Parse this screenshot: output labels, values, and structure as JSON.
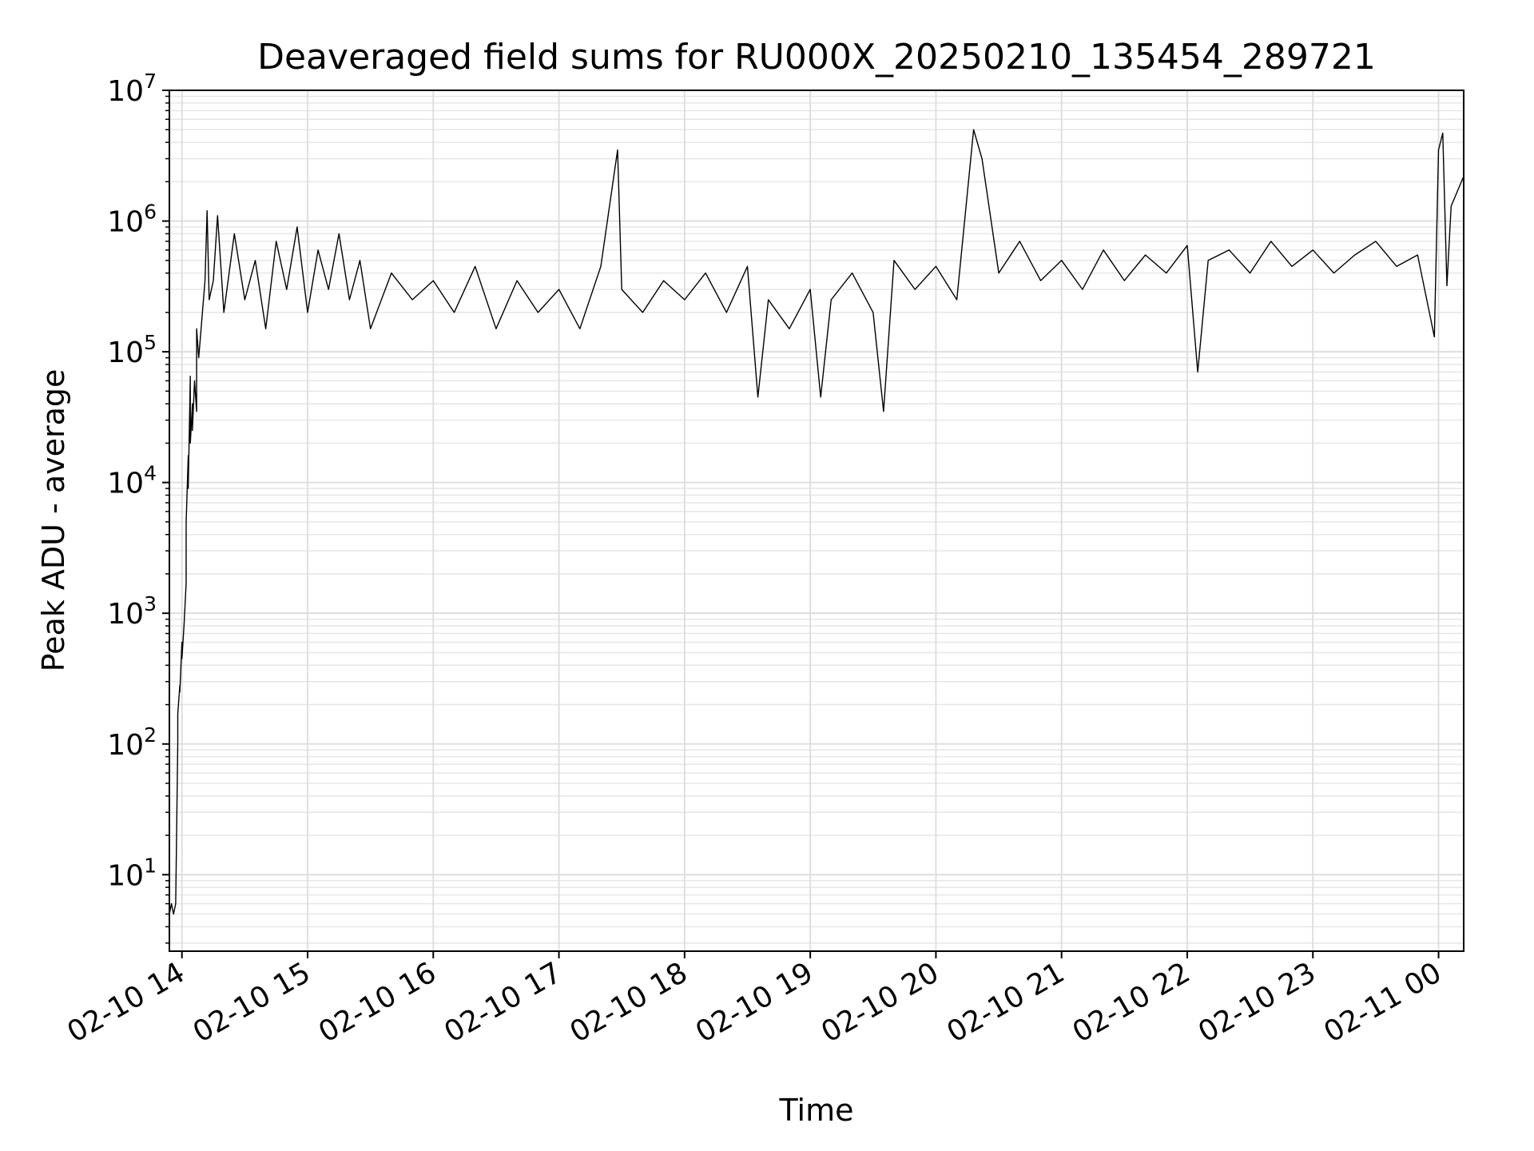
{
  "chart_data": {
    "type": "line",
    "title": "Deaveraged field sums for RU000X_20250210_135454_289721",
    "xlabel": "Time",
    "ylabel": "Peak ADU - average",
    "y_scale": "log",
    "ylim": [
      2.6,
      10000000
    ],
    "xlim": [
      "2025-02-10 13:54",
      "2025-02-11 00:12"
    ],
    "grid": true,
    "x_ticks": [
      {
        "value": "2025-02-10 14:00",
        "label": "02-10 14"
      },
      {
        "value": "2025-02-10 15:00",
        "label": "02-10 15"
      },
      {
        "value": "2025-02-10 16:00",
        "label": "02-10 16"
      },
      {
        "value": "2025-02-10 17:00",
        "label": "02-10 17"
      },
      {
        "value": "2025-02-10 18:00",
        "label": "02-10 18"
      },
      {
        "value": "2025-02-10 19:00",
        "label": "02-10 19"
      },
      {
        "value": "2025-02-10 20:00",
        "label": "02-10 20"
      },
      {
        "value": "2025-02-10 21:00",
        "label": "02-10 21"
      },
      {
        "value": "2025-02-10 22:00",
        "label": "02-10 22"
      },
      {
        "value": "2025-02-10 23:00",
        "label": "02-10 23"
      },
      {
        "value": "2025-02-11 00:00",
        "label": "02-11 00"
      }
    ],
    "y_ticks": [
      {
        "base": "10",
        "exp": "1",
        "value": 10
      },
      {
        "base": "10",
        "exp": "2",
        "value": 100
      },
      {
        "base": "10",
        "exp": "3",
        "value": 1000
      },
      {
        "base": "10",
        "exp": "4",
        "value": 10000
      },
      {
        "base": "10",
        "exp": "5",
        "value": 100000
      },
      {
        "base": "10",
        "exp": "6",
        "value": 1000000
      },
      {
        "base": "10",
        "exp": "7",
        "value": 10000000
      }
    ],
    "series": [
      {
        "color": "#000000",
        "points": [
          [
            "2025-02-10 13:54",
            5
          ],
          [
            "2025-02-10 13:55",
            6
          ],
          [
            "2025-02-10 13:56",
            5
          ],
          [
            "2025-02-10 13:57",
            6
          ],
          [
            "2025-02-10 13:58",
            100
          ],
          [
            "2025-02-10 13:58",
            170
          ],
          [
            "2025-02-10 13:59",
            280
          ],
          [
            "2025-02-10 13:59",
            250
          ],
          [
            "2025-02-10 14:00",
            600
          ],
          [
            "2025-02-10 14:00",
            450
          ],
          [
            "2025-02-10 14:01",
            800
          ],
          [
            "2025-02-10 14:02",
            1700
          ],
          [
            "2025-02-10 14:02",
            5000
          ],
          [
            "2025-02-10 14:03",
            16000
          ],
          [
            "2025-02-10 14:03",
            9000
          ],
          [
            "2025-02-10 14:04",
            65000
          ],
          [
            "2025-02-10 14:04",
            20000
          ],
          [
            "2025-02-10 14:05",
            40000
          ],
          [
            "2025-02-10 14:05",
            25000
          ],
          [
            "2025-02-10 14:06",
            60000
          ],
          [
            "2025-02-10 14:07",
            35000
          ],
          [
            "2025-02-10 14:07",
            150000
          ],
          [
            "2025-02-10 14:08",
            90000
          ],
          [
            "2025-02-10 14:09",
            140000
          ],
          [
            "2025-02-10 14:10",
            220000
          ],
          [
            "2025-02-10 14:11",
            350000
          ],
          [
            "2025-02-10 14:12",
            1200000
          ],
          [
            "2025-02-10 14:13",
            250000
          ],
          [
            "2025-02-10 14:15",
            350000
          ],
          [
            "2025-02-10 14:17",
            1100000
          ],
          [
            "2025-02-10 14:20",
            200000
          ],
          [
            "2025-02-10 14:25",
            800000
          ],
          [
            "2025-02-10 14:30",
            250000
          ],
          [
            "2025-02-10 14:35",
            500000
          ],
          [
            "2025-02-10 14:40",
            150000
          ],
          [
            "2025-02-10 14:45",
            700000
          ],
          [
            "2025-02-10 14:50",
            300000
          ],
          [
            "2025-02-10 14:55",
            900000
          ],
          [
            "2025-02-10 15:00",
            200000
          ],
          [
            "2025-02-10 15:05",
            600000
          ],
          [
            "2025-02-10 15:10",
            300000
          ],
          [
            "2025-02-10 15:15",
            800000
          ],
          [
            "2025-02-10 15:20",
            250000
          ],
          [
            "2025-02-10 15:25",
            500000
          ],
          [
            "2025-02-10 15:30",
            150000
          ],
          [
            "2025-02-10 15:40",
            400000
          ],
          [
            "2025-02-10 15:50",
            250000
          ],
          [
            "2025-02-10 16:00",
            350000
          ],
          [
            "2025-02-10 16:10",
            200000
          ],
          [
            "2025-02-10 16:20",
            450000
          ],
          [
            "2025-02-10 16:30",
            150000
          ],
          [
            "2025-02-10 16:40",
            350000
          ],
          [
            "2025-02-10 16:50",
            200000
          ],
          [
            "2025-02-10 17:00",
            300000
          ],
          [
            "2025-02-10 17:10",
            150000
          ],
          [
            "2025-02-10 17:20",
            450000
          ],
          [
            "2025-02-10 17:28",
            3500000
          ],
          [
            "2025-02-10 17:30",
            300000
          ],
          [
            "2025-02-10 17:40",
            200000
          ],
          [
            "2025-02-10 17:50",
            350000
          ],
          [
            "2025-02-10 18:00",
            250000
          ],
          [
            "2025-02-10 18:10",
            400000
          ],
          [
            "2025-02-10 18:20",
            200000
          ],
          [
            "2025-02-10 18:30",
            450000
          ],
          [
            "2025-02-10 18:35",
            45000
          ],
          [
            "2025-02-10 18:40",
            250000
          ],
          [
            "2025-02-10 18:50",
            150000
          ],
          [
            "2025-02-10 19:00",
            300000
          ],
          [
            "2025-02-10 19:05",
            45000
          ],
          [
            "2025-02-10 19:10",
            250000
          ],
          [
            "2025-02-10 19:20",
            400000
          ],
          [
            "2025-02-10 19:30",
            200000
          ],
          [
            "2025-02-10 19:35",
            35000
          ],
          [
            "2025-02-10 19:40",
            500000
          ],
          [
            "2025-02-10 19:50",
            300000
          ],
          [
            "2025-02-10 20:00",
            450000
          ],
          [
            "2025-02-10 20:10",
            250000
          ],
          [
            "2025-02-10 20:18",
            5000000
          ],
          [
            "2025-02-10 20:22",
            3000000
          ],
          [
            "2025-02-10 20:30",
            400000
          ],
          [
            "2025-02-10 20:40",
            700000
          ],
          [
            "2025-02-10 20:50",
            350000
          ],
          [
            "2025-02-10 21:00",
            500000
          ],
          [
            "2025-02-10 21:10",
            300000
          ],
          [
            "2025-02-10 21:20",
            600000
          ],
          [
            "2025-02-10 21:30",
            350000
          ],
          [
            "2025-02-10 21:40",
            550000
          ],
          [
            "2025-02-10 21:50",
            400000
          ],
          [
            "2025-02-10 22:00",
            650000
          ],
          [
            "2025-02-10 22:05",
            70000
          ],
          [
            "2025-02-10 22:10",
            500000
          ],
          [
            "2025-02-10 22:20",
            600000
          ],
          [
            "2025-02-10 22:30",
            400000
          ],
          [
            "2025-02-10 22:40",
            700000
          ],
          [
            "2025-02-10 22:50",
            450000
          ],
          [
            "2025-02-10 23:00",
            600000
          ],
          [
            "2025-02-10 23:10",
            400000
          ],
          [
            "2025-02-10 23:20",
            550000
          ],
          [
            "2025-02-10 23:30",
            700000
          ],
          [
            "2025-02-10 23:40",
            450000
          ],
          [
            "2025-02-10 23:50",
            550000
          ],
          [
            "2025-02-10 23:58",
            130000
          ],
          [
            "2025-02-11 00:00",
            3500000
          ],
          [
            "2025-02-11 00:02",
            4700000
          ],
          [
            "2025-02-11 00:04",
            320000
          ],
          [
            "2025-02-11 00:06",
            1300000
          ],
          [
            "2025-02-11 00:12",
            2200000
          ]
        ]
      }
    ]
  }
}
